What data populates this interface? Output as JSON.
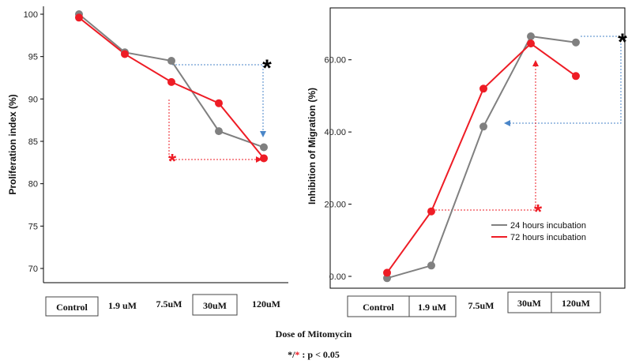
{
  "chart_data": [
    {
      "type": "line",
      "ylabel": "Proliferation index (%)",
      "ylim": [
        70,
        100
      ],
      "yticks": [
        "70",
        "75",
        "80",
        "85",
        "90",
        "95",
        "100"
      ],
      "categories": [
        "Control",
        "1.9 uM",
        "7.5uM",
        "30uM",
        "120uM"
      ],
      "series": [
        {
          "color": "#808080",
          "values": [
            100,
            95.5,
            94.5,
            86.2,
            84.3
          ]
        },
        {
          "color": "#ee1c25",
          "values": [
            99.6,
            95.3,
            92.0,
            89.5,
            83.0
          ]
        }
      ],
      "annotations": [
        {
          "text": "*",
          "color": "#000000"
        },
        {
          "text": "*",
          "color": "#ee1c25"
        }
      ]
    },
    {
      "type": "line",
      "ylabel": "Inhibition of Migration (%)",
      "ylim": [
        0,
        70
      ],
      "yticks": [
        "0.00",
        "20.00",
        "40.00",
        "60.00"
      ],
      "categories": [
        "Control",
        "1.9 uM",
        "7.5uM",
        "30uM",
        "120uM"
      ],
      "series": [
        {
          "name": "24 hours incubation",
          "color": "#808080",
          "values": [
            -0.5,
            3.0,
            41.5,
            66.5,
            64.8
          ]
        },
        {
          "name": "72 hours incubation",
          "color": "#ee1c25",
          "values": [
            1.0,
            18.0,
            52.0,
            64.5,
            55.5
          ]
        }
      ],
      "annotations": [
        {
          "text": "*",
          "color": "#000000"
        },
        {
          "text": "*",
          "color": "#ee1c25"
        }
      ]
    }
  ],
  "footer": {
    "xlabel": "Dose of Mitomycin",
    "significance_star_black": "*",
    "significance_slash": "/",
    "significance_star_red": "*",
    "significance_text": " : p < 0.05"
  }
}
